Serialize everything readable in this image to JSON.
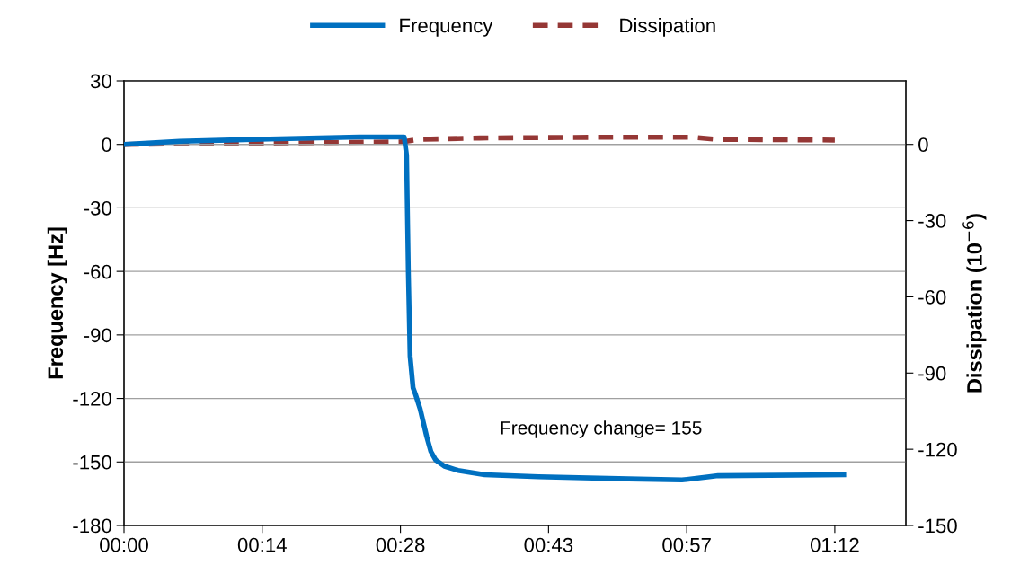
{
  "chart_data": {
    "type": "line",
    "ylabel": "Frequency [Hz]",
    "y2label": "Dissipation (10$^{−6}$)",
    "annotations": [
      "Frequency change= 155"
    ],
    "series": [
      {
        "name": "Frequency",
        "color": "#0070c0",
        "line_style": "solid",
        "x": [
          0,
          0.094,
          0.245,
          0.397,
          0.473,
          0.477,
          0.48,
          0.483,
          0.488,
          0.492,
          0.5,
          0.511,
          0.518,
          0.526,
          0.541,
          0.564,
          0.609,
          0.7,
          0.852,
          0.942,
          0.988,
          1.003,
          1.215
        ],
        "values": [
          0,
          1.5,
          2.5,
          3.5,
          3.5,
          -5,
          -60,
          -100,
          -115,
          -118,
          -125,
          -138,
          -145,
          -149,
          -152,
          -154,
          -156,
          -157,
          -158,
          -158.5,
          -157,
          -156.5,
          -156
        ]
      },
      {
        "name": "Dissipation",
        "color": "#953735",
        "line_style": "dashed",
        "axis": "y2",
        "x": [
          0,
          0.24,
          0.47,
          0.5,
          0.6,
          0.8,
          0.96,
          1.0,
          1.2
        ],
        "values": [
          0,
          0.5,
          1,
          2,
          2.5,
          2.8,
          2.8,
          2,
          1.7
        ]
      }
    ],
    "xlim": [
      0,
      1.32
    ],
    "xticks": [
      {
        "value": 0,
        "label": "00:00"
      },
      {
        "value": 0.2333,
        "label": "00:14"
      },
      {
        "value": 0.4667,
        "label": "00:28"
      },
      {
        "value": 0.7167,
        "label": "00:43"
      },
      {
        "value": 0.95,
        "label": "00:57"
      },
      {
        "value": 1.2,
        "label": "01:12"
      }
    ],
    "ylim": [
      -180,
      30
    ],
    "yticks": [
      -180,
      -150,
      -120,
      -90,
      -60,
      -30,
      0,
      30
    ],
    "y2lim": [
      -150,
      25
    ],
    "y2ticks": [
      -150,
      -120,
      -90,
      -60,
      -30,
      0
    ],
    "grid": "y",
    "legend": "top",
    "marker": "none"
  }
}
